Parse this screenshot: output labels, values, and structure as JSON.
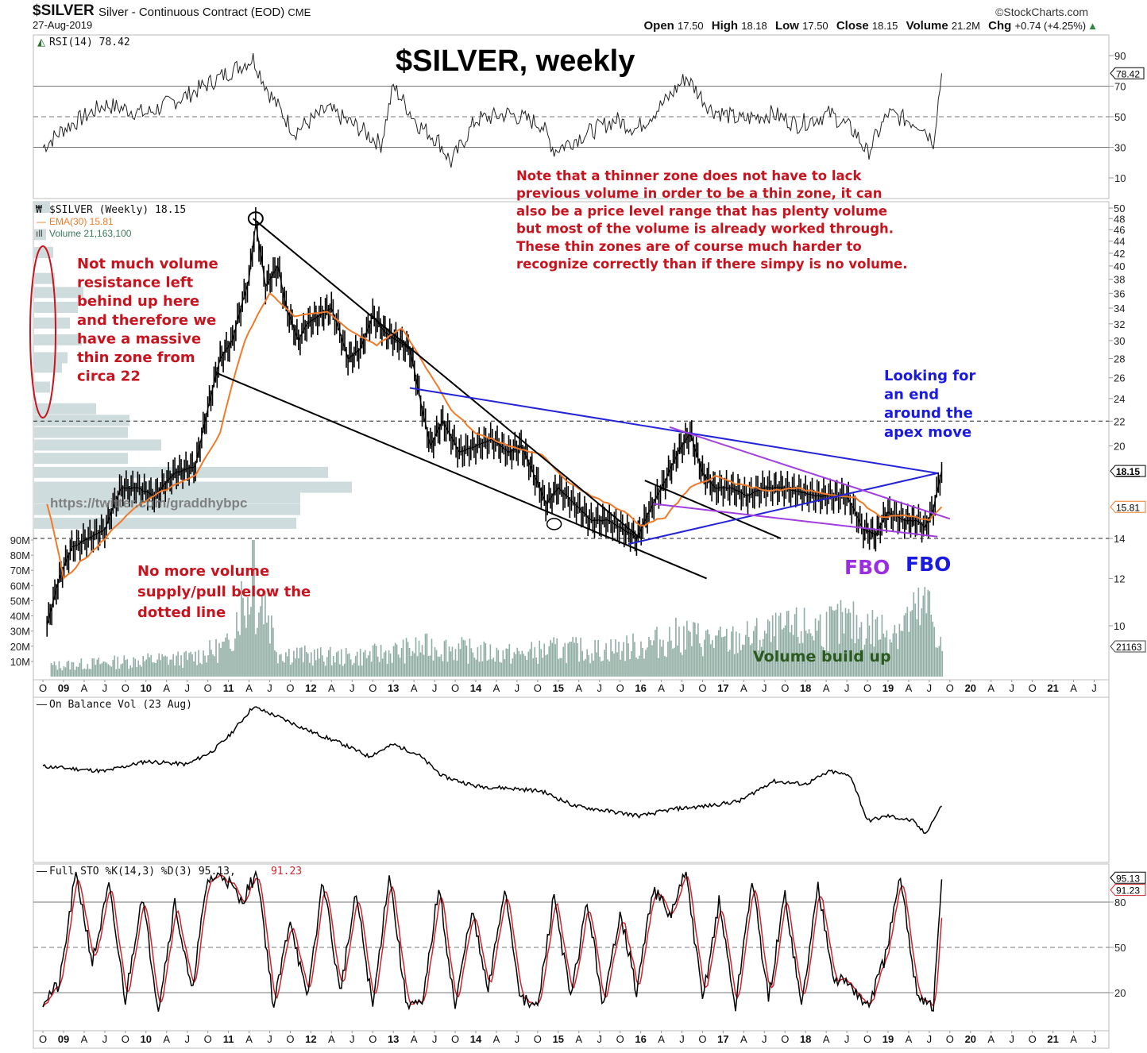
{
  "header": {
    "symbol": "$SILVER",
    "description": "Silver - Continuous Contract (EOD)",
    "exchange": "CME",
    "date": "27-Aug-2019",
    "brand": "©StockCharts.com",
    "quote": {
      "open_label": "Open",
      "open": "17.50",
      "high_label": "High",
      "high": "18.18",
      "low_label": "Low",
      "low": "17.50",
      "close_label": "Close",
      "close": "18.15",
      "volume_label": "Volume",
      "volume": "21.2M",
      "chg_label": "Chg",
      "chg": "+0.74 (+4.25%)",
      "chg_icon": "triangle-up-icon"
    }
  },
  "title": "$SILVER, weekly",
  "watermark": "https://twitter.com/graddhybpc",
  "colors": {
    "price": "#000000",
    "ema": "#ef7b2a",
    "volume": "#8fada2",
    "volume_profile": "#cfdcdd",
    "annotation_red": "#c8141e",
    "annotation_blue": "#1a1ae0",
    "annotation_purple": "#9b2ee0",
    "trend_black": "#000000",
    "trend_blue": "#2323d8",
    "trend_purple": "#a23ee0",
    "sto_d": "#d0232b",
    "volume_text_green": "#2a5a1e"
  },
  "chart_data": [
    {
      "type": "line",
      "panel": "rsi",
      "legend": "RSI(14) 78.42",
      "legend_icon": "mountain-chart-icon",
      "y_ticks": [
        "90",
        "70",
        "50",
        "30",
        "10"
      ],
      "reference_lines": [
        70,
        50,
        30
      ],
      "ylim": [
        0,
        100
      ],
      "last_value": "78.42",
      "series": [
        {
          "name": "RSI(14)",
          "x": [
            2008.75,
            2009.0,
            2009.5,
            2010.0,
            2010.5,
            2010.9,
            2011.3,
            2011.5,
            2011.8,
            2012.2,
            2012.6,
            2012.85,
            2013.0,
            2013.3,
            2013.55,
            2013.7,
            2014.0,
            2014.4,
            2014.8,
            2014.95,
            2015.3,
            2015.7,
            2015.95,
            2016.3,
            2016.55,
            2016.85,
            2017.2,
            2017.6,
            2017.9,
            2018.3,
            2018.6,
            2018.75,
            2019.0,
            2019.4,
            2019.55,
            2019.65
          ],
          "values": [
            30,
            42,
            58,
            52,
            64,
            76,
            88,
            65,
            40,
            55,
            42,
            32,
            70,
            45,
            34,
            20,
            48,
            52,
            45,
            28,
            38,
            48,
            42,
            60,
            76,
            55,
            48,
            52,
            45,
            52,
            40,
            26,
            52,
            45,
            34,
            78.42
          ]
        }
      ]
    },
    {
      "type": "line",
      "panel": "price",
      "scale": "log",
      "legend": "$SILVER (Weekly) 18.15",
      "legend_icon": "candlestick-icon",
      "ema_legend": "EMA(30) 15.81",
      "volume_legend": "Volume 21,163,100",
      "volume_legend_icon": "bar-chart-icon",
      "y_ticks": [
        "50",
        "48",
        "46",
        "44",
        "42",
        "40",
        "38",
        "36",
        "34",
        "32",
        "30",
        "28",
        "26",
        "24",
        "22",
        "20",
        "14",
        "12",
        "10"
      ],
      "volume_ticks": [
        "90M",
        "80M",
        "70M",
        "60M",
        "50M",
        "40M",
        "30M",
        "20M",
        "10M"
      ],
      "x_ticks": [
        "O",
        "09",
        "A",
        "J",
        "O",
        "10",
        "A",
        "J",
        "O",
        "11",
        "A",
        "J",
        "O",
        "12",
        "A",
        "J",
        "O",
        "13",
        "A",
        "J",
        "O",
        "14",
        "A",
        "J",
        "O",
        "15",
        "A",
        "J",
        "O",
        "16",
        "A",
        "J",
        "O",
        "17",
        "A",
        "J",
        "O",
        "18",
        "A",
        "J",
        "O",
        "19",
        "A",
        "J",
        "O",
        "20",
        "A",
        "J",
        "O",
        "21",
        "A",
        "J"
      ],
      "last_close": "18.15",
      "last_ema": "15.81",
      "last_volume": "21163",
      "dotted_levels": [
        22,
        14
      ],
      "series": [
        {
          "name": "$SILVER close",
          "x": [
            2008.8,
            2008.95,
            2009.1,
            2009.3,
            2009.5,
            2009.7,
            2009.9,
            2010.1,
            2010.35,
            2010.6,
            2010.75,
            2010.9,
            2011.05,
            2011.25,
            2011.33,
            2011.45,
            2011.6,
            2011.7,
            2011.85,
            2011.95,
            2012.1,
            2012.25,
            2012.45,
            2012.6,
            2012.75,
            2012.9,
            2013.05,
            2013.2,
            2013.35,
            2013.45,
            2013.6,
            2013.8,
            2014.0,
            2014.2,
            2014.4,
            2014.55,
            2014.7,
            2014.85,
            2015.0,
            2015.2,
            2015.4,
            2015.6,
            2015.8,
            2015.95,
            2016.1,
            2016.3,
            2016.45,
            2016.6,
            2016.75,
            2016.9,
            2017.1,
            2017.3,
            2017.5,
            2017.7,
            2017.9,
            2018.1,
            2018.3,
            2018.5,
            2018.7,
            2018.85,
            2019.0,
            2019.2,
            2019.35,
            2019.45,
            2019.55,
            2019.65
          ],
          "values": [
            10,
            12,
            13.5,
            14,
            14.5,
            17,
            17,
            16.5,
            18,
            18.5,
            23,
            28,
            30,
            38,
            47,
            37,
            40,
            34,
            30,
            32,
            33,
            34,
            28,
            29,
            33,
            31,
            30,
            29,
            23,
            20,
            22,
            19.5,
            20,
            20.5,
            19.5,
            20,
            18,
            16,
            17,
            16,
            15,
            15,
            14.5,
            14,
            15.5,
            17.5,
            19.5,
            21,
            18,
            17,
            17,
            16.5,
            17,
            17,
            16.8,
            16.5,
            16.5,
            16.5,
            14.5,
            14.2,
            15.5,
            15,
            15,
            14.6,
            15.7,
            18.15
          ]
        },
        {
          "name": "EMA(30)",
          "x": [
            2008.8,
            2009.0,
            2009.4,
            2009.8,
            2010.2,
            2010.6,
            2010.9,
            2011.2,
            2011.5,
            2011.8,
            2012.2,
            2012.5,
            2012.8,
            2013.1,
            2013.4,
            2013.7,
            2014.0,
            2014.4,
            2014.8,
            2015.1,
            2015.4,
            2015.8,
            2016.0,
            2016.3,
            2016.6,
            2016.9,
            2017.2,
            2017.6,
            2017.9,
            2018.3,
            2018.6,
            2018.9,
            2019.2,
            2019.5,
            2019.65
          ],
          "values": [
            16,
            12,
            13.5,
            15.5,
            16.8,
            17.8,
            21,
            30,
            36,
            33,
            33.5,
            31,
            29.5,
            31.5,
            27,
            23,
            21,
            20,
            19.3,
            17.5,
            16.5,
            15.5,
            14.7,
            15.2,
            17,
            17.8,
            17.2,
            16.8,
            17,
            16.5,
            16.4,
            15.2,
            15.3,
            15.0,
            15.81
          ]
        },
        {
          "name": "Volume (M)",
          "x": [
            2008.9,
            2009.5,
            2010.0,
            2010.5,
            2011.0,
            2011.3,
            2011.6,
            2012.0,
            2012.5,
            2013.0,
            2013.5,
            2014.0,
            2014.5,
            2015.0,
            2015.5,
            2016.0,
            2016.5,
            2017.0,
            2017.5,
            2018.0,
            2018.5,
            2019.0,
            2019.5,
            2019.65
          ],
          "values": [
            8,
            10,
            12,
            13,
            22,
            90,
            18,
            15,
            14,
            18,
            22,
            18,
            16,
            20,
            19,
            22,
            30,
            25,
            30,
            35,
            38,
            33,
            50,
            21.16
          ]
        }
      ]
    },
    {
      "type": "line",
      "panel": "obv",
      "legend": "On Balance Vol (23 Aug)",
      "series": [
        {
          "name": "OBV",
          "x": [
            2008.75,
            2009.5,
            2010.0,
            2010.5,
            2010.8,
            2011.0,
            2011.3,
            2011.6,
            2012.0,
            2012.4,
            2012.7,
            2013.0,
            2013.3,
            2013.6,
            2014.0,
            2014.4,
            2014.8,
            2015.2,
            2015.6,
            2016.0,
            2016.4,
            2016.8,
            2017.2,
            2017.6,
            2018.0,
            2018.3,
            2018.55,
            2018.75,
            2019.0,
            2019.3,
            2019.45,
            2019.65
          ],
          "values": [
            40,
            35,
            45,
            42,
            55,
            70,
            100,
            90,
            75,
            62,
            50,
            62,
            52,
            30,
            20,
            18,
            15,
            0,
            -5,
            -10,
            -3,
            0,
            5,
            25,
            22,
            35,
            30,
            -15,
            -10,
            -15,
            -28,
            0
          ]
        }
      ]
    },
    {
      "type": "line",
      "panel": "stochastic",
      "legend_prefix": "Full STO %K(14,3) %D(3) 95.13,",
      "legend_d": "91.23",
      "y_ticks": [
        "80",
        "50",
        "20"
      ],
      "reference_lines": [
        80,
        50,
        20
      ],
      "ylim": [
        0,
        100
      ],
      "last_k": "95.13",
      "last_d": "91.23",
      "series": [
        {
          "name": "%K",
          "x": [
            2008.75,
            2008.95,
            2009.15,
            2009.35,
            2009.55,
            2009.75,
            2009.95,
            2010.15,
            2010.35,
            2010.55,
            2010.75,
            2010.95,
            2011.15,
            2011.35,
            2011.55,
            2011.75,
            2011.95,
            2012.15,
            2012.35,
            2012.55,
            2012.75,
            2012.95,
            2013.15,
            2013.35,
            2013.55,
            2013.75,
            2013.95,
            2014.15,
            2014.35,
            2014.55,
            2014.75,
            2014.95,
            2015.15,
            2015.35,
            2015.55,
            2015.75,
            2015.95,
            2016.15,
            2016.35,
            2016.55,
            2016.75,
            2016.95,
            2017.15,
            2017.35,
            2017.55,
            2017.75,
            2017.95,
            2018.15,
            2018.35,
            2018.55,
            2018.75,
            2018.95,
            2019.15,
            2019.35,
            2019.55,
            2019.65
          ],
          "values": [
            15,
            25,
            100,
            40,
            90,
            15,
            85,
            10,
            80,
            20,
            95,
            98,
            80,
            100,
            10,
            70,
            15,
            95,
            20,
            85,
            10,
            100,
            15,
            10,
            90,
            10,
            75,
            20,
            90,
            15,
            10,
            85,
            15,
            80,
            10,
            75,
            20,
            90,
            70,
            100,
            15,
            80,
            10,
            95,
            15,
            85,
            10,
            90,
            30,
            25,
            10,
            40,
            95,
            20,
            10,
            95.13
          ]
        },
        {
          "name": "%D",
          "x": [
            2008.75,
            2019.65
          ],
          "values": [
            20,
            91.23
          ]
        }
      ]
    }
  ],
  "annotations": {
    "note_lines": [
      "Note that a thinner zone does not have to lack",
      "previous volume in order to be a thin zone, it can",
      "also be a price level range that has plenty volume",
      "but most of the volume is already worked through.",
      "These thin zones are of course much harder to",
      "recognize correctly than if there simpy is no volume."
    ],
    "left_lines": [
      "Not much volume",
      "resistance left",
      "behind up here",
      "and therefore we",
      "have a massive",
      "thin zone from",
      "circa 22"
    ],
    "below_lines": [
      "No more volume",
      "supply/pull below the",
      "dotted line"
    ],
    "apex_lines": [
      "Looking for",
      "an end",
      "around the",
      "apex move"
    ],
    "fbo_purple": "FBO",
    "fbo_blue": "FBO",
    "volume_build_up": "Volume build up"
  }
}
